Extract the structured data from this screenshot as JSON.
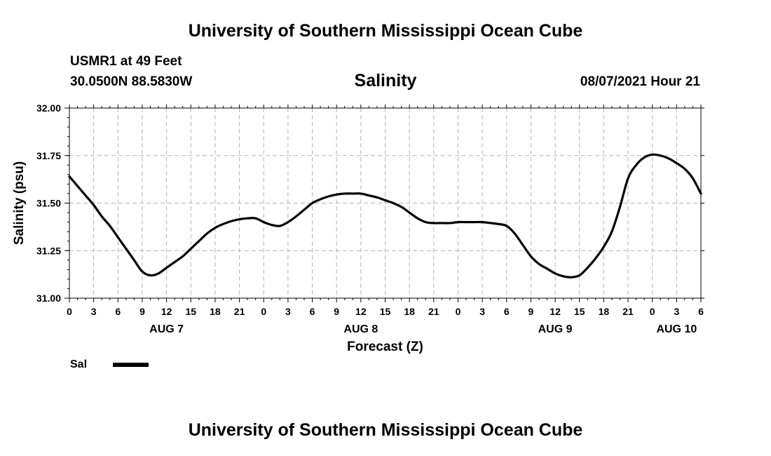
{
  "header": {
    "title": "University of Southern Mississippi Ocean Cube",
    "station": "USMR1 at 49 Feet",
    "coordinates": "30.0500N  88.5830W",
    "variable": "Salinity",
    "datetime": "08/07/2021 Hour 21"
  },
  "footer": {
    "title": "University of Southern Mississippi Ocean Cube"
  },
  "chart_data": {
    "type": "line",
    "title": "Salinity",
    "xlabel": "Forecast (Z)",
    "ylabel": "Salinity (psu)",
    "ylim": [
      31.0,
      32.0
    ],
    "xlim": [
      0,
      78
    ],
    "yticks": [
      31.0,
      31.25,
      31.5,
      31.75,
      32.0
    ],
    "ytick_labels": [
      "31.00",
      "31.25",
      "31.50",
      "31.75",
      "32.00"
    ],
    "xtick_labels": [
      "0",
      "3",
      "6",
      "9",
      "12",
      "15",
      "18",
      "21",
      "0",
      "3",
      "6",
      "9",
      "12",
      "15",
      "18",
      "21",
      "0",
      "3",
      "6",
      "9",
      "12",
      "15",
      "18",
      "21",
      "0",
      "3",
      "6"
    ],
    "date_labels": [
      {
        "label": "AUG 7",
        "x": 12
      },
      {
        "label": "AUG 8",
        "x": 36
      },
      {
        "label": "AUG 9",
        "x": 60
      },
      {
        "label": "AUG 10",
        "x": 75
      }
    ],
    "grid": true,
    "legend": {
      "position": "bottom-left",
      "entries": [
        {
          "name": "Sal",
          "color": "#000000"
        }
      ]
    },
    "series": [
      {
        "name": "Sal",
        "color": "#000000",
        "x": [
          0,
          1,
          2,
          3,
          4,
          5,
          6,
          7,
          8,
          9,
          10,
          11,
          12,
          13,
          14,
          15,
          16,
          17,
          18,
          19,
          20,
          21,
          22,
          23,
          24,
          25,
          26,
          27,
          28,
          29,
          30,
          31,
          32,
          33,
          34,
          35,
          36,
          37,
          38,
          39,
          40,
          41,
          42,
          43,
          44,
          45,
          46,
          47,
          48,
          49,
          50,
          51,
          52,
          53,
          54,
          55,
          56,
          57,
          58,
          59,
          60,
          61,
          62,
          63,
          64,
          65,
          66,
          67,
          68,
          69,
          70,
          71,
          72,
          73,
          74,
          75,
          76,
          77,
          78
        ],
        "values": [
          31.64,
          31.59,
          31.54,
          31.49,
          31.43,
          31.38,
          31.32,
          31.26,
          31.2,
          31.14,
          31.12,
          31.13,
          31.16,
          31.19,
          31.22,
          31.26,
          31.3,
          31.34,
          31.37,
          31.39,
          31.405,
          31.415,
          31.42,
          31.42,
          31.4,
          31.385,
          31.38,
          31.4,
          31.43,
          31.465,
          31.5,
          31.52,
          31.535,
          31.545,
          31.55,
          31.55,
          31.55,
          31.54,
          31.53,
          31.515,
          31.5,
          31.48,
          31.45,
          31.42,
          31.4,
          31.395,
          31.395,
          31.395,
          31.4,
          31.4,
          31.4,
          31.4,
          31.395,
          31.39,
          31.38,
          31.34,
          31.28,
          31.22,
          31.18,
          31.155,
          31.13,
          31.115,
          31.11,
          31.12,
          31.16,
          31.21,
          31.27,
          31.35,
          31.48,
          31.63,
          31.7,
          31.74,
          31.755,
          31.75,
          31.735,
          31.71,
          31.68,
          31.63,
          31.55
        ]
      }
    ]
  }
}
